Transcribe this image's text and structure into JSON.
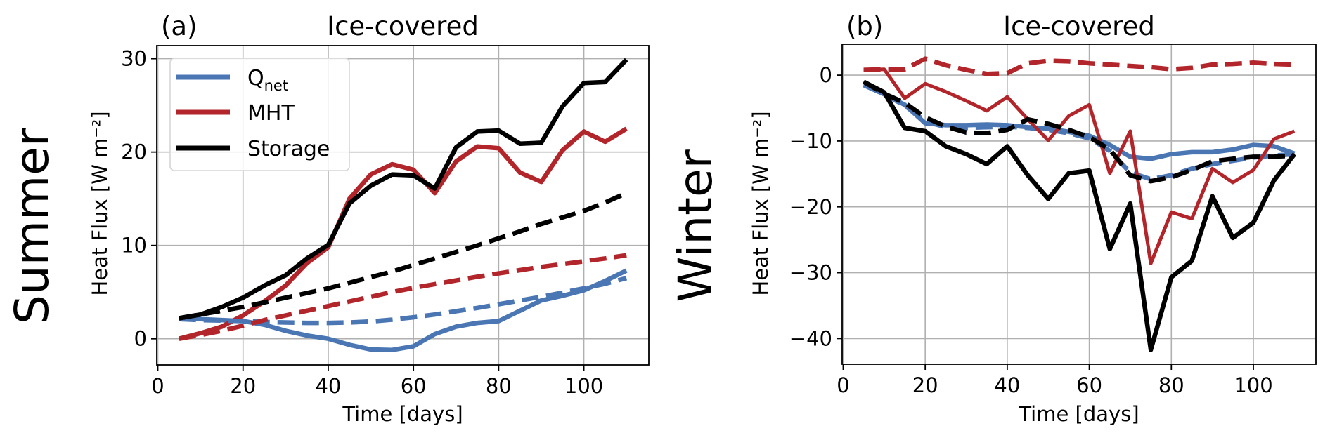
{
  "figure": {
    "row_labels": {
      "summer": "Summer",
      "winter": "Winter"
    }
  },
  "colors": {
    "qnet": "#4a76b4",
    "mht": "#b2262b",
    "storage": "#000000",
    "grid": "#b0b0b0"
  },
  "legend": {
    "items": [
      {
        "key": "qnet",
        "label_main": "Q",
        "label_sub": "net"
      },
      {
        "key": "mht",
        "label_main": "MHT",
        "label_sub": ""
      },
      {
        "key": "storage",
        "label_main": "Storage",
        "label_sub": ""
      }
    ],
    "placement": "upper-left (panel a)"
  },
  "chart_data": [
    {
      "type": "line",
      "panel": "(a)",
      "title": "Ice-covered",
      "row_label": "Summer",
      "xlabel": "Time [days]",
      "ylabel": "Heat Flux [W m⁻²]",
      "xlim": [
        -0.25,
        115.25
      ],
      "ylim": [
        -2.8,
        31.4
      ],
      "xticks": [
        0,
        20,
        40,
        60,
        80,
        100
      ],
      "yticks": [
        0,
        10,
        20,
        30
      ],
      "grid": true,
      "legend": "top-left",
      "x": [
        5,
        10,
        15,
        20,
        25,
        30,
        35,
        40,
        45,
        50,
        55,
        60,
        65,
        70,
        75,
        80,
        85,
        90,
        95,
        100,
        105,
        110
      ],
      "series": [
        {
          "name": "Q_net",
          "key": "qnet",
          "style": "solid",
          "values": [
            2.1,
            2.1,
            2.0,
            1.9,
            1.5,
            0.85,
            0.35,
            0.0,
            -0.65,
            -1.15,
            -1.2,
            -0.8,
            0.5,
            1.3,
            1.7,
            1.9,
            3.0,
            4.1,
            4.6,
            5.2,
            6.2,
            7.3
          ]
        },
        {
          "name": "MHT",
          "key": "mht",
          "style": "solid",
          "values": [
            0.0,
            0.6,
            1.3,
            2.5,
            4.0,
            5.7,
            8.1,
            9.8,
            15.0,
            17.6,
            18.7,
            18.1,
            15.6,
            19.0,
            20.6,
            20.4,
            17.8,
            16.8,
            20.2,
            22.2,
            21.1,
            22.5
          ]
        },
        {
          "name": "Storage",
          "key": "storage",
          "style": "solid",
          "values": [
            2.2,
            2.6,
            3.4,
            4.4,
            5.7,
            6.8,
            8.6,
            10.05,
            14.5,
            16.4,
            17.6,
            17.5,
            16.1,
            20.5,
            22.2,
            22.3,
            20.9,
            21.0,
            24.9,
            27.4,
            27.5,
            29.9
          ]
        },
        {
          "name": "Q_net (dashed)",
          "key": "qnet",
          "style": "dashed",
          "values": [
            2.1,
            2.0,
            1.95,
            1.9,
            1.8,
            1.75,
            1.7,
            1.7,
            1.75,
            1.85,
            2.05,
            2.3,
            2.6,
            2.95,
            3.3,
            3.7,
            4.1,
            4.5,
            4.95,
            5.4,
            5.9,
            6.5
          ]
        },
        {
          "name": "MHT (dashed)",
          "key": "mht",
          "style": "dashed",
          "values": [
            0.0,
            0.4,
            0.85,
            1.4,
            2.0,
            2.5,
            3.0,
            3.5,
            4.0,
            4.5,
            5.0,
            5.45,
            5.85,
            6.25,
            6.65,
            7.0,
            7.35,
            7.7,
            8.0,
            8.3,
            8.6,
            8.95
          ]
        },
        {
          "name": "Storage (dashed)",
          "key": "storage",
          "style": "dashed",
          "values": [
            2.2,
            2.6,
            3.0,
            3.4,
            3.9,
            4.4,
            4.9,
            5.4,
            6.0,
            6.6,
            7.2,
            7.9,
            8.6,
            9.3,
            10.0,
            10.75,
            11.5,
            12.3,
            13.0,
            13.7,
            14.6,
            15.6
          ]
        }
      ]
    },
    {
      "type": "line",
      "panel": "(b)",
      "title": "Ice-covered",
      "row_label": "Winter",
      "xlabel": "Time [days]",
      "ylabel": "Heat Flux [W m⁻²]",
      "xlim": [
        -0.25,
        115.25
      ],
      "ylim": [
        -43.9,
        4.7
      ],
      "xticks": [
        0,
        20,
        40,
        60,
        80,
        100
      ],
      "yticks": [
        -40,
        -30,
        -20,
        -10,
        0
      ],
      "grid": true,
      "legend": "none",
      "x": [
        5,
        10,
        15,
        20,
        25,
        30,
        35,
        40,
        45,
        50,
        55,
        60,
        65,
        70,
        75,
        80,
        85,
        90,
        95,
        100,
        105,
        110
      ],
      "series": [
        {
          "name": "Q_net",
          "key": "qnet",
          "style": "solid",
          "values": [
            -1.5,
            -2.9,
            -4.5,
            -7.3,
            -7.6,
            -7.6,
            -7.5,
            -7.6,
            -7.9,
            -8.1,
            -8.6,
            -9.2,
            -10.6,
            -12.4,
            -12.7,
            -12.0,
            -11.7,
            -11.7,
            -11.3,
            -10.6,
            -10.8,
            -11.9
          ]
        },
        {
          "name": "Q_net (dashed)",
          "key": "qnet",
          "style": "dashed",
          "values": [
            -1.5,
            -2.9,
            -4.6,
            -7.0,
            -7.9,
            -8.0,
            -7.9,
            -7.8,
            -8.0,
            -8.3,
            -8.8,
            -9.6,
            -11.5,
            -14.8,
            -15.8,
            -15.2,
            -14.2,
            -13.5,
            -13.0,
            -12.5,
            -12.2,
            -12.0
          ]
        },
        {
          "name": "MHT",
          "key": "mht",
          "style": "solid",
          "values": [
            0.8,
            0.9,
            -3.5,
            -1.3,
            -2.5,
            -3.9,
            -5.4,
            -3.3,
            -6.7,
            -9.9,
            -6.2,
            -4.5,
            -14.9,
            -8.5,
            -28.6,
            -20.8,
            -21.8,
            -14.2,
            -16.3,
            -14.4,
            -9.7,
            -8.5
          ]
        },
        {
          "name": "MHT (dashed)",
          "key": "mht",
          "style": "dashed",
          "values": [
            0.8,
            0.9,
            0.9,
            2.5,
            1.5,
            0.8,
            0.2,
            0.3,
            1.8,
            2.2,
            2.1,
            1.8,
            1.6,
            1.4,
            1.2,
            0.9,
            1.1,
            1.6,
            1.7,
            1.9,
            1.7,
            1.6
          ]
        },
        {
          "name": "Storage",
          "key": "storage",
          "style": "solid",
          "values": [
            -1.0,
            -2.6,
            -8.0,
            -8.5,
            -10.8,
            -12.0,
            -13.5,
            -10.8,
            -15.2,
            -18.8,
            -14.9,
            -14.5,
            -26.4,
            -19.5,
            -41.7,
            -30.7,
            -28.2,
            -18.4,
            -24.7,
            -22.4,
            -16.0,
            -12.0
          ]
        },
        {
          "name": "Storage (dashed)",
          "key": "storage",
          "style": "dashed",
          "values": [
            -1.0,
            -2.8,
            -4.2,
            -6.4,
            -7.8,
            -8.7,
            -8.8,
            -8.3,
            -6.7,
            -7.4,
            -8.3,
            -9.4,
            -11.3,
            -15.2,
            -16.1,
            -15.5,
            -14.4,
            -13.1,
            -12.7,
            -12.4,
            -12.4,
            -12.2
          ]
        }
      ]
    }
  ]
}
